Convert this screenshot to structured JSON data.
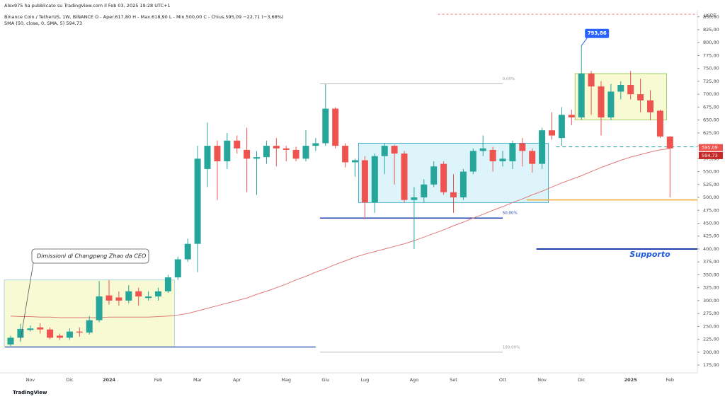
{
  "header": {
    "author": "Alex975 ha pubblicato su TradingView.com il Feb 03, 2025 19:28 UTC+1",
    "symbol": "Binance Coin / TetherUS, 1W, BINANCE  O - Aper.617,80  H - Max.618,90  L - Min.500,00  C - Chius.595,09  −22,71 (−3,68%)",
    "indicator": "SMA (50, close, 0, SMA, 5)  594,73"
  },
  "footer": {
    "brand": "TradingView"
  },
  "chart_data": {
    "type": "candlestick",
    "currency": "USDT",
    "categories": [
      null,
      null,
      "Nov",
      null,
      null,
      null,
      "Dic",
      null,
      null,
      null,
      "2024",
      null,
      null,
      null,
      null,
      "Feb",
      null,
      null,
      null,
      "Mar",
      null,
      null,
      null,
      "Apr",
      null,
      null,
      null,
      null,
      "Mag",
      null,
      null,
      null,
      "Giu",
      null,
      null,
      null,
      "Lug",
      null,
      null,
      null,
      null,
      "Ago",
      null,
      null,
      null,
      "Set",
      null,
      null,
      null,
      null,
      "Ott",
      null,
      null,
      null,
      "Nov",
      null,
      null,
      null,
      "Dic",
      null,
      null,
      null,
      null,
      "2025",
      null,
      null,
      null,
      "Feb"
    ],
    "open": [
      215,
      228,
      243,
      248,
      244,
      232,
      228,
      240,
      238,
      262,
      310,
      306,
      300,
      318,
      305,
      308,
      318,
      345,
      380,
      410,
      555,
      600,
      570,
      610,
      592,
      575,
      578,
      600,
      595,
      592,
      575,
      600,
      605,
      672,
      600,
      568,
      572,
      490,
      580,
      600,
      585,
      495,
      500,
      525,
      565,
      510,
      500,
      550,
      590,
      592,
      570,
      570,
      605,
      590,
      565,
      630,
      615,
      660,
      655,
      740,
      715,
      655,
      705,
      718,
      700,
      688,
      668,
      617.8
    ],
    "high": [
      232,
      255,
      252,
      256,
      248,
      236,
      246,
      248,
      270,
      338,
      340,
      318,
      330,
      325,
      318,
      325,
      350,
      385,
      420,
      600,
      645,
      610,
      625,
      620,
      635,
      590,
      610,
      615,
      600,
      598,
      630,
      615,
      720,
      675,
      605,
      575,
      580,
      585,
      605,
      602,
      590,
      520,
      535,
      570,
      570,
      545,
      555,
      595,
      620,
      598,
      590,
      610,
      615,
      595,
      635,
      665,
      675,
      670,
      793.86,
      745,
      725,
      720,
      725,
      745,
      730,
      708,
      670,
      618.9
    ],
    "low": [
      212,
      220,
      240,
      236,
      225,
      224,
      224,
      230,
      234,
      258,
      292,
      290,
      295,
      290,
      300,
      300,
      315,
      340,
      375,
      355,
      520,
      495,
      555,
      585,
      510,
      505,
      565,
      560,
      570,
      570,
      570,
      590,
      600,
      595,
      558,
      540,
      458,
      470,
      545,
      525,
      490,
      400,
      490,
      520,
      505,
      470,
      495,
      545,
      580,
      550,
      560,
      555,
      560,
      548,
      555,
      612,
      600,
      640,
      650,
      660,
      620,
      650,
      690,
      690,
      665,
      650,
      615,
      500
    ],
    "close": [
      228,
      245,
      246,
      244,
      228,
      228,
      240,
      238,
      262,
      308,
      300,
      300,
      318,
      308,
      308,
      318,
      345,
      380,
      410,
      575,
      600,
      570,
      610,
      595,
      575,
      578,
      600,
      595,
      592,
      575,
      600,
      605,
      672,
      600,
      568,
      572,
      490,
      580,
      600,
      585,
      495,
      500,
      525,
      560,
      510,
      500,
      550,
      590,
      595,
      570,
      575,
      605,
      590,
      565,
      630,
      620,
      660,
      655,
      740,
      715,
      655,
      705,
      718,
      700,
      688,
      665,
      618,
      595.09
    ],
    "up_color": "#26a69a",
    "down_color": "#ef5350",
    "sma": {
      "color": "#e07a7a",
      "values": [
        270,
        269,
        269,
        268,
        268,
        267,
        267,
        267,
        267,
        267,
        268,
        268,
        268,
        268,
        268,
        269,
        270,
        272,
        275,
        280,
        285,
        290,
        295,
        300,
        305,
        312,
        318,
        325,
        332,
        340,
        347,
        355,
        362,
        370,
        377,
        384,
        390,
        395,
        400,
        405,
        410,
        416,
        423,
        430,
        437,
        445,
        452,
        460,
        467,
        475,
        482,
        490,
        497,
        505,
        512,
        520,
        528,
        535,
        542,
        550,
        558,
        565,
        572,
        578,
        583,
        588,
        592,
        594.73
      ]
    },
    "last_price_label": "595,09",
    "sma_last_label": "594,73",
    "high_annotation": {
      "label": "793,86",
      "value": 793.86
    },
    "ylim": [
      160,
      862
    ],
    "yticks": [
      {
        "value": 175,
        "label": "175,00"
      },
      {
        "value": 200,
        "label": "200,00"
      },
      {
        "value": 225,
        "label": "225,00"
      },
      {
        "value": 250,
        "label": "250,00"
      },
      {
        "value": 275,
        "label": "275,00"
      },
      {
        "value": 300,
        "label": "300,00"
      },
      {
        "value": 325,
        "label": "325,00"
      },
      {
        "value": 350,
        "label": "350,00"
      },
      {
        "value": 375,
        "label": "375,00"
      },
      {
        "value": 400,
        "label": "400,00"
      },
      {
        "value": 425,
        "label": "425,00"
      },
      {
        "value": 450,
        "label": "450,00"
      },
      {
        "value": 475,
        "label": "475,00"
      },
      {
        "value": 500,
        "label": "500,00"
      },
      {
        "value": 525,
        "label": "525,00"
      },
      {
        "value": 550,
        "label": "550,00"
      },
      {
        "value": 575,
        "label": "575,00"
      },
      {
        "value": 600,
        "label": "600,00"
      },
      {
        "value": 625,
        "label": "625,00"
      },
      {
        "value": 650,
        "label": "650,00"
      },
      {
        "value": 675,
        "label": "675,00"
      },
      {
        "value": 700,
        "label": "700,00"
      },
      {
        "value": 725,
        "label": "725,00"
      },
      {
        "value": 750,
        "label": "750,00"
      },
      {
        "value": 775,
        "label": "775,00"
      },
      {
        "value": 800,
        "label": "800,00"
      },
      {
        "value": 825,
        "label": "825,00"
      },
      {
        "value": 850,
        "label": "850,00"
      }
    ],
    "levels": [
      {
        "value": 400,
        "color": "#1e40af",
        "label": "Supporto"
      },
      {
        "value": 495,
        "color": "#f5a623"
      },
      {
        "value": 460,
        "color": "#1e40af"
      },
      {
        "value": 210,
        "color": "#1e40af"
      },
      {
        "value": 720,
        "color": "#b0b0b0",
        "label": "0,00%"
      },
      {
        "value": 200,
        "color": "#b0b0b0",
        "label": "100,00%"
      },
      {
        "value": 598,
        "color": "#26a69a"
      },
      {
        "value": 855,
        "color": "#ef5350"
      }
    ],
    "fib_mid": {
      "value": 460,
      "label": "50,00%"
    },
    "zones": [
      {
        "low": 210,
        "high": 340,
        "color": "#f5f9c8"
      },
      {
        "low": 490,
        "high": 605,
        "color": "#d4f1f9"
      },
      {
        "low": 650,
        "high": 740,
        "color": "#f5f9c8"
      }
    ],
    "annotation": "Dimissioni di Changpeng Zhao da CEO"
  }
}
